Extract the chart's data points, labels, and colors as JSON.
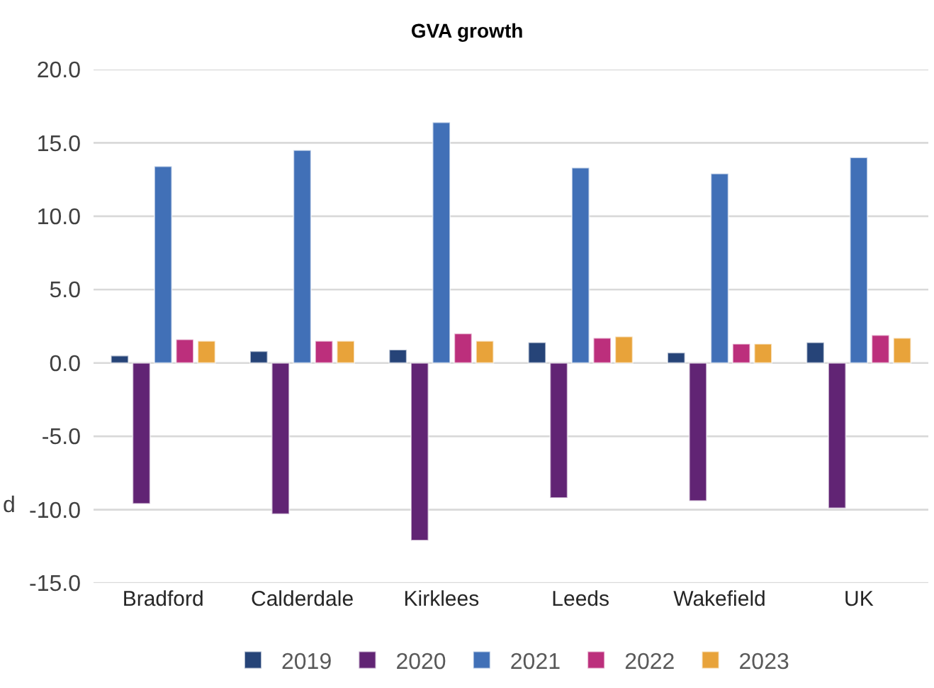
{
  "chart_data": {
    "type": "bar",
    "title": "GVA growth",
    "categories": [
      "Bradford",
      "Calderdale",
      "Kirklees",
      "Leeds",
      "Wakefield",
      "UK"
    ],
    "series": [
      {
        "name": "2019",
        "color": "#264478",
        "values": [
          0.5,
          0.8,
          0.9,
          1.4,
          0.7,
          1.4
        ]
      },
      {
        "name": "2020",
        "color": "#612474",
        "values": [
          -9.6,
          -10.3,
          -12.1,
          -9.2,
          -9.4,
          -9.9
        ]
      },
      {
        "name": "2021",
        "color": "#4170b7",
        "values": [
          13.4,
          14.5,
          16.4,
          13.3,
          12.9,
          14.0
        ]
      },
      {
        "name": "2022",
        "color": "#bc2f7c",
        "values": [
          1.6,
          1.5,
          2.0,
          1.7,
          1.3,
          1.9
        ]
      },
      {
        "name": "2023",
        "color": "#e8a33a",
        "values": [
          1.5,
          1.5,
          1.5,
          1.8,
          1.3,
          1.7
        ]
      }
    ],
    "ylim": [
      -15,
      20
    ],
    "yticks": [
      {
        "value": -15,
        "label": "-15.0"
      },
      {
        "value": -10,
        "label": "-10.0"
      },
      {
        "value": -5,
        "label": "-5.0"
      },
      {
        "value": 0,
        "label": "0.0"
      },
      {
        "value": 5,
        "label": "5.0"
      },
      {
        "value": 10,
        "label": "10.0"
      },
      {
        "value": 15,
        "label": "15.0"
      },
      {
        "value": 20,
        "label": "20.0"
      }
    ],
    "grid": "y",
    "legend": "bottom",
    "annotations": [
      "d"
    ]
  }
}
